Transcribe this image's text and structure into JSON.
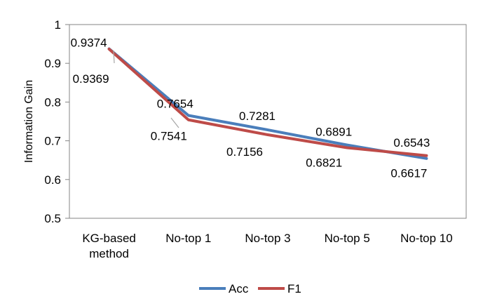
{
  "chart_data": {
    "type": "line",
    "title": "",
    "xlabel": "",
    "ylabel": "Information Gain",
    "ylim": [
      0.5,
      1
    ],
    "yticks": [
      "0.5",
      "0.6",
      "0.7",
      "0.8",
      "0.9",
      "1"
    ],
    "categories": [
      [
        "KG-based",
        "method"
      ],
      [
        "No-top 1"
      ],
      [
        "No-top 3"
      ],
      [
        "No-top 5"
      ],
      [
        "No-top 10"
      ]
    ],
    "series": [
      {
        "name": "Acc",
        "color": "#4a7ebb",
        "values": [
          0.9374,
          0.7654,
          0.7281,
          0.6891,
          0.6543
        ]
      },
      {
        "name": "F1",
        "color": "#be4b48",
        "values": [
          0.9369,
          0.7541,
          0.7156,
          0.6821,
          0.6617
        ]
      }
    ],
    "data_labels": {
      "Acc": [
        "0.9374",
        "0.7654",
        "0.7281",
        "0.6891",
        "0.6543"
      ],
      "F1": [
        "0.9369",
        "0.7541",
        "0.7156",
        "0.6821",
        "0.6617"
      ]
    },
    "grid": false,
    "legend": "bottom"
  }
}
